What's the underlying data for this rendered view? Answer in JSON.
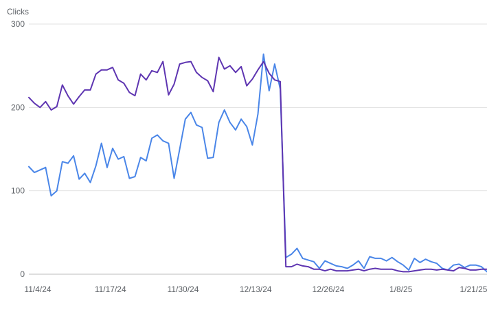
{
  "chart_data": {
    "type": "line",
    "ylabel": "Clicks",
    "ylim": [
      0,
      300
    ],
    "y_ticks": [
      "0",
      "100",
      "200",
      "300"
    ],
    "x_ticks": [
      "11/4/24",
      "11/17/24",
      "11/30/24",
      "12/13/24",
      "12/26/24",
      "1/8/25",
      "1/21/25"
    ],
    "grid": true,
    "colors": {
      "series_1": "#4a86e8",
      "series_2": "#5e35b1",
      "grid": "#e0e0e0",
      "axis": "#bdbdbd"
    },
    "series": [
      {
        "values": [
          129,
          122,
          125,
          128,
          94,
          100,
          135,
          133,
          142,
          114,
          121,
          110,
          130,
          157,
          128,
          151,
          138,
          141,
          115,
          117,
          140,
          136,
          163,
          167,
          160,
          157,
          115,
          150,
          186,
          194,
          179,
          176,
          139,
          140,
          182,
          197,
          182,
          173,
          186,
          177,
          155,
          192,
          264,
          220,
          252,
          222,
          20,
          24,
          31,
          19,
          17,
          15,
          7,
          16,
          13,
          10,
          9,
          7,
          11,
          16,
          7,
          21,
          19,
          19,
          16,
          20,
          15,
          11,
          5,
          19,
          14,
          18,
          15,
          13,
          7,
          5,
          11,
          12,
          8,
          11,
          11,
          9,
          3
        ]
      },
      {
        "values": [
          212,
          205,
          200,
          207,
          197,
          201,
          227,
          214,
          204,
          213,
          221,
          221,
          240,
          245,
          245,
          248,
          233,
          229,
          218,
          214,
          240,
          233,
          244,
          242,
          255,
          215,
          228,
          252,
          254,
          255,
          242,
          236,
          232,
          219,
          260,
          246,
          250,
          242,
          249,
          226,
          234,
          245,
          255,
          241,
          233,
          231,
          9,
          9,
          12,
          10,
          9,
          6,
          6,
          4,
          6,
          4,
          4,
          4,
          5,
          6,
          4,
          6,
          7,
          6,
          6,
          6,
          4,
          3,
          3,
          4,
          5,
          6,
          6,
          5,
          6,
          5,
          4,
          8,
          7,
          5,
          5,
          6,
          6
        ]
      }
    ]
  }
}
